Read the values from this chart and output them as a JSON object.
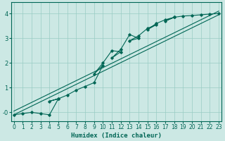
{
  "xlabel": "Humidex (Indice chaleur)",
  "bg_color": "#cce8e4",
  "grid_color": "#99ccc4",
  "line_color": "#006655",
  "xlim": [
    -0.3,
    23.3
  ],
  "ylim": [
    -0.35,
    4.45
  ],
  "xticks": [
    0,
    1,
    2,
    3,
    4,
    5,
    6,
    7,
    8,
    9,
    10,
    11,
    12,
    13,
    14,
    15,
    16,
    17,
    18,
    19,
    20,
    21,
    22,
    23
  ],
  "yticks": [
    0,
    1,
    2,
    3,
    4
  ],
  "ytick_labels": [
    "-0",
    "1",
    "2",
    "3",
    "4"
  ],
  "zigzag_x": [
    0,
    1,
    2,
    3,
    4,
    5,
    4,
    5,
    6,
    7,
    8,
    9,
    10,
    9,
    10,
    11,
    12,
    11,
    12,
    13,
    14,
    13,
    14,
    15,
    16,
    15,
    16,
    17,
    18,
    17,
    18,
    19,
    20,
    21,
    22,
    23
  ],
  "zigzag_y": [
    -0.1,
    -0.05,
    0.0,
    -0.05,
    -0.1,
    0.55,
    0.45,
    0.55,
    0.7,
    0.9,
    1.05,
    1.2,
    1.9,
    1.55,
    2.0,
    2.5,
    2.45,
    2.2,
    2.55,
    3.15,
    3.0,
    2.9,
    3.1,
    3.4,
    3.55,
    3.35,
    3.6,
    3.75,
    3.85,
    3.7,
    3.85,
    3.9,
    3.92,
    3.95,
    3.98,
    4.0
  ],
  "trend1_x": [
    0,
    23
  ],
  "trend1_y": [
    -0.1,
    3.95
  ],
  "trend2_x": [
    0,
    23
  ],
  "trend2_y": [
    0.05,
    4.1
  ]
}
